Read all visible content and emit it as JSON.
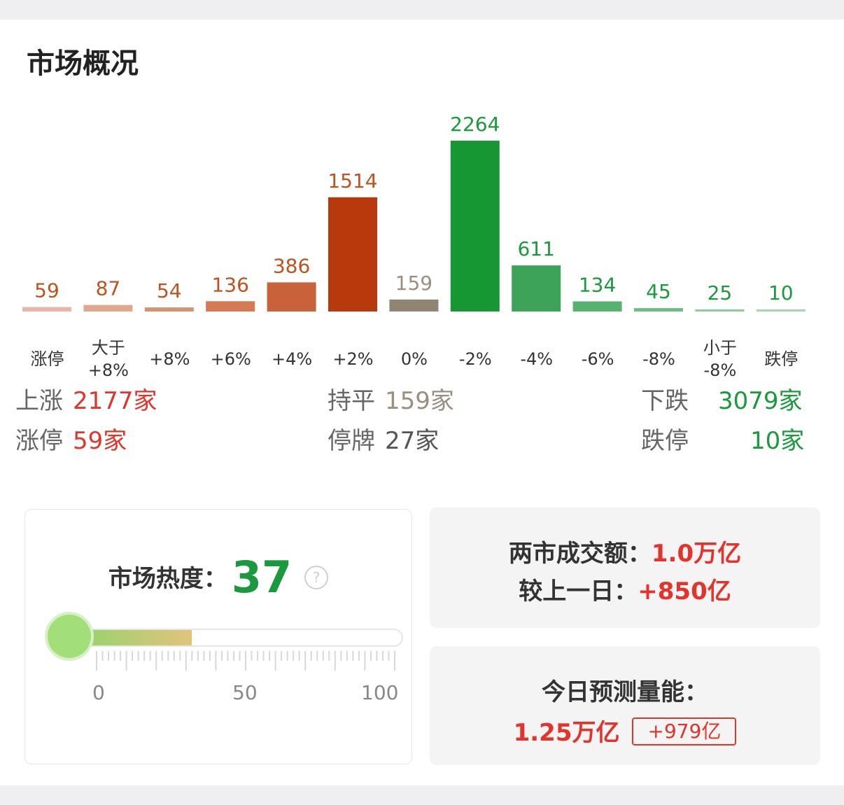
{
  "title": "市场概况",
  "chart_data": {
    "type": "bar",
    "categories": [
      "涨停",
      "大于\n+8%",
      "+8%",
      "+6%",
      "+4%",
      "+2%",
      "0%",
      "-2%",
      "-4%",
      "-6%",
      "-8%",
      "小于\n-8%",
      "跌停"
    ],
    "values": [
      59,
      87,
      54,
      136,
      386,
      1514,
      159,
      2264,
      611,
      134,
      45,
      25,
      10
    ],
    "colors": [
      "#e8b6a2",
      "#e1a88e",
      "#d9906f",
      "#d57a53",
      "#c9613a",
      "#b83a0c",
      "#8e8573",
      "#179634",
      "#3ca359",
      "#55b36e",
      "#6fbd82",
      "#8dcb9b",
      "#a5d6b0"
    ],
    "label_colors": [
      "#c0521e",
      "#c0521e",
      "#c0521e",
      "#c0521e",
      "#c0521e",
      "#c0521e",
      "#9a8f7e",
      "#1a9a3c",
      "#1a9a3c",
      "#1a9a3c",
      "#1a9a3c",
      "#1a9a3c",
      "#1a9a3c"
    ],
    "ylim": [
      0,
      2264
    ]
  },
  "stats": {
    "up": {
      "label": "上涨",
      "value": "2177家"
    },
    "flat": {
      "label": "持平",
      "value": "159家"
    },
    "down": {
      "label": "下跌",
      "value": "3079家"
    },
    "limit_up": {
      "label": "涨停",
      "value": "59家"
    },
    "suspended": {
      "label": "停牌",
      "value": "27家"
    },
    "limit_down": {
      "label": "跌停",
      "value": "10家"
    }
  },
  "heat": {
    "label": "市场热度：",
    "score": "37",
    "level": 0.37,
    "help_icon": "?",
    "scale": [
      "0",
      "50",
      "100"
    ]
  },
  "turnover": {
    "label": "两市成交额：",
    "value": "1.0万亿",
    "compare_label": "较上一日：",
    "compare_value": "+850亿"
  },
  "forecast": {
    "label": "今日预测量能：",
    "value": "1.25万亿",
    "badge": "+979亿"
  }
}
